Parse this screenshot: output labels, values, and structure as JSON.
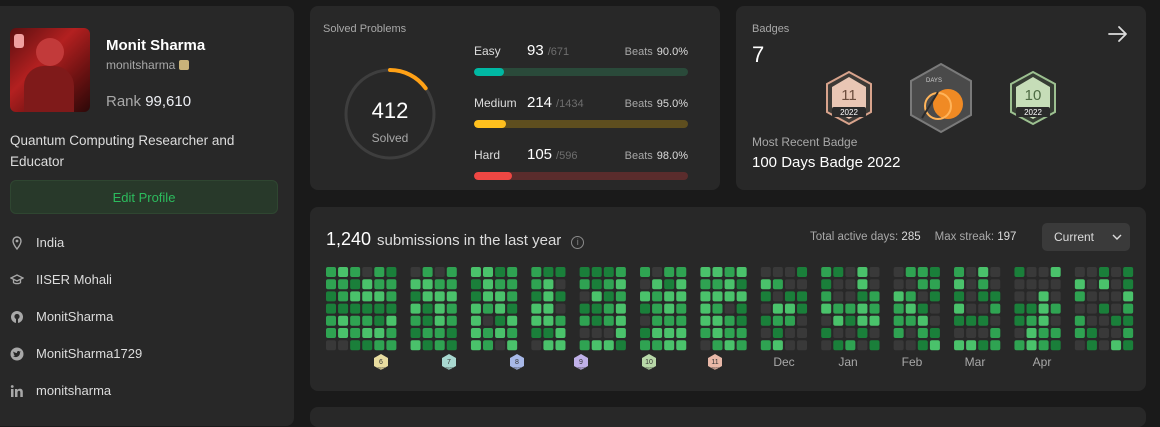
{
  "profile": {
    "name": "Monit Sharma",
    "username": "monitsharma",
    "rank_label": "Rank",
    "rank_value": "99,610",
    "bio": "Quantum Computing Researcher and Educator",
    "edit_label": "Edit Profile",
    "location": "India",
    "school": "IISER Mohali",
    "github": "MonitSharma",
    "twitter": "MonitSharma1729",
    "linkedin": "monitsharma"
  },
  "solved": {
    "title": "Solved Problems",
    "total": "412",
    "total_label": "Solved",
    "progress_fraction": 0.15,
    "difficulties": [
      {
        "name": "Easy",
        "count": "93",
        "total": "/671",
        "beats_label": "Beats",
        "beats": "90.0%",
        "fraction": 0.139,
        "color": "#00b8a3",
        "track": "#2a4a3a"
      },
      {
        "name": "Medium",
        "count": "214",
        "total": "/1434",
        "beats_label": "Beats",
        "beats": "95.0%",
        "fraction": 0.149,
        "color": "#ffc01e",
        "track": "#5e4e1f"
      },
      {
        "name": "Hard",
        "count": "105",
        "total": "/596",
        "beats_label": "Beats",
        "beats": "98.0%",
        "fraction": 0.176,
        "color": "#ef4743",
        "track": "#5a2c2c"
      }
    ]
  },
  "badges": {
    "title": "Badges",
    "count": "7",
    "items": [
      {
        "label": "11",
        "year": "2022",
        "color": "#d8a38c"
      },
      {
        "label": "DAYS",
        "year": "",
        "color": "#5a5a5a"
      },
      {
        "label": "10",
        "year": "2022",
        "color": "#9cc090"
      }
    ],
    "recent_label": "Most Recent Badge",
    "recent_name": "100 Days Badge 2022"
  },
  "calendar": {
    "count": "1,240",
    "text": "submissions in the last year",
    "active_label": "Total active days:",
    "active_value": "285",
    "streak_label": "Max streak:",
    "streak_value": "197",
    "select_value": "Current",
    "months": [
      "Dec",
      "Jan",
      "Feb",
      "Mar",
      "Apr"
    ],
    "month_badges": [
      {
        "label": "6",
        "year": "2022",
        "color": "#e8dca0"
      },
      {
        "label": "7",
        "year": "2022",
        "color": "#a8d8d0"
      },
      {
        "label": "8",
        "year": "2022",
        "color": "#a8b8e8"
      },
      {
        "label": "9",
        "year": "2022",
        "color": "#c0b0e8"
      },
      {
        "label": "10",
        "year": "2022",
        "color": "#b8d8a8"
      },
      {
        "label": "11",
        "year": "2022",
        "color": "#e8b8a8"
      }
    ]
  }
}
